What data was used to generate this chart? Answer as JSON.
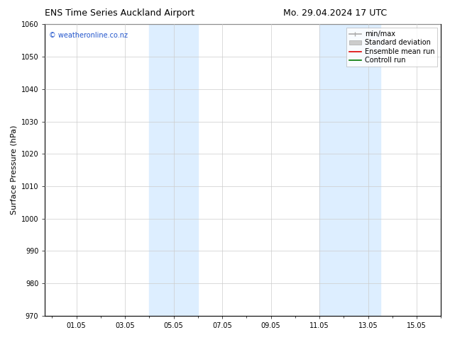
{
  "title_left": "ENS Time Series Auckland Airport",
  "title_right": "Mo. 29.04.2024 17 UTC",
  "ylabel": "Surface Pressure (hPa)",
  "ylim": [
    970,
    1060
  ],
  "yticks": [
    970,
    980,
    990,
    1000,
    1010,
    1020,
    1030,
    1040,
    1050,
    1060
  ],
  "xtick_labels": [
    "01.05",
    "03.05",
    "05.05",
    "07.05",
    "09.05",
    "11.05",
    "13.05",
    "15.05"
  ],
  "xtick_positions": [
    1.2917,
    3.2917,
    5.2917,
    7.2917,
    9.2917,
    11.2917,
    13.2917,
    15.2917
  ],
  "xlim": [
    0,
    16.2917
  ],
  "band1_start": 4.2917,
  "band1_end": 6.2917,
  "band2_start": 11.2917,
  "band2_end": 13.7917,
  "shaded_color": "#ddeeff",
  "watermark_text": "© weatheronline.co.nz",
  "watermark_color": "#2255cc",
  "bg_color": "#ffffff",
  "plot_bg_color": "#ffffff",
  "grid_color": "#cccccc",
  "title_fontsize": 9,
  "tick_fontsize": 7,
  "ylabel_fontsize": 8,
  "watermark_fontsize": 7,
  "legend_fontsize": 7
}
